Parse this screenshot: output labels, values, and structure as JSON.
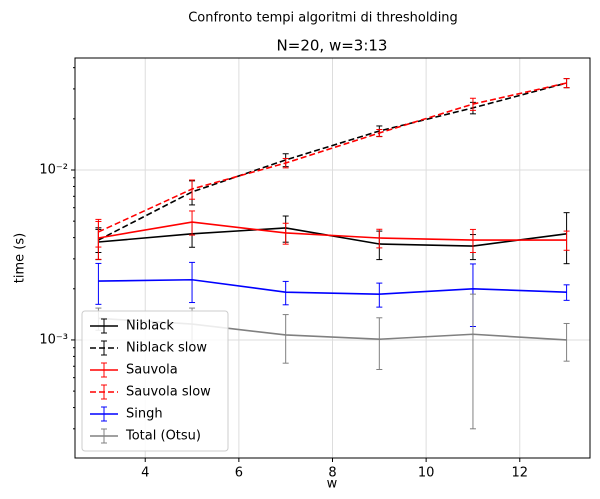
{
  "chart_data": {
    "type": "errorbar-line",
    "suptitle": "Confronto tempi algoritmi di thresholding",
    "title": "N=20, w=3:13",
    "xlabel": "w",
    "ylabel": "time (s)",
    "yscale": "log",
    "grid": true,
    "legend_loc": "lower left",
    "x": [
      3,
      5,
      7,
      9,
      11,
      13
    ],
    "xlim": [
      2.5,
      13.5
    ],
    "xticks": [
      4,
      6,
      8,
      10,
      12
    ],
    "ylim": [
      0.000202,
      0.0456
    ],
    "yticks": [
      {
        "value": 0.001,
        "label": "10⁻³"
      },
      {
        "value": 0.01,
        "label": "10⁻²"
      }
    ],
    "yminorticks": [
      0.0003,
      0.0004,
      0.0005,
      0.0006,
      0.0007,
      0.0008,
      0.0009,
      0.002,
      0.003,
      0.004,
      0.005,
      0.006,
      0.007,
      0.008,
      0.009,
      0.02,
      0.03,
      0.04
    ],
    "series": [
      {
        "name": "Niblack",
        "color": "#000000",
        "linestyle": "solid",
        "values": [
          0.00377,
          0.00421,
          0.00456,
          0.00367,
          0.00357,
          0.00421
        ],
        "errors": [
          0.0008,
          0.0007,
          0.0008,
          0.0007,
          0.0006,
          0.0014
        ]
      },
      {
        "name": "Niblack slow",
        "color": "#000000",
        "linestyle": "dashed",
        "values": [
          0.00387,
          0.00743,
          0.01146,
          0.01696,
          0.0232,
          0.0325
        ],
        "errors": [
          0.0006,
          0.0012,
          0.001,
          0.0012,
          0.0018,
          0.002
        ]
      },
      {
        "name": "Sauvola",
        "color": "#ff0000",
        "linestyle": "solid",
        "values": [
          0.00398,
          0.00494,
          0.00426,
          0.00398,
          0.00387,
          0.00387
        ],
        "errors": [
          0.001,
          0.0008,
          0.0006,
          0.0005,
          0.0006,
          0.0005
        ]
      },
      {
        "name": "Sauvola slow",
        "color": "#ff0000",
        "linestyle": "dashed",
        "values": [
          0.00432,
          0.00773,
          0.01099,
          0.01651,
          0.02443,
          0.0325
        ],
        "errors": [
          0.0008,
          0.001,
          0.0007,
          0.0008,
          0.002,
          0.002
        ]
      },
      {
        "name": "Singh",
        "color": "#0000ff",
        "linestyle": "solid",
        "values": [
          0.00222,
          0.00226,
          0.00191,
          0.00186,
          0.002,
          0.00191
        ],
        "errors": [
          0.0006,
          0.0006,
          0.0003,
          0.0003,
          0.0008,
          0.0002
        ]
      },
      {
        "name": "Total (Otsu)",
        "color": "#808080",
        "linestyle": "solid",
        "values": [
          0.00134,
          0.00124,
          0.00107,
          0.00101,
          0.00108,
          0.001
        ],
        "errors": [
          0.0002,
          0.0003,
          0.00034,
          0.00034,
          0.00078,
          0.00025
        ]
      }
    ]
  }
}
